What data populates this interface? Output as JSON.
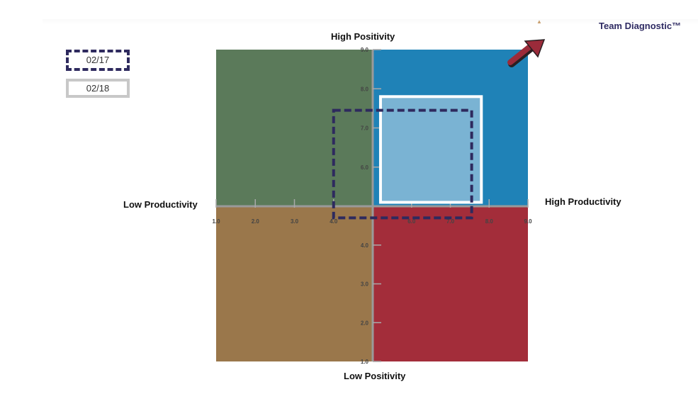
{
  "header": {
    "brand": "Team Diagnostic™",
    "brand_mark": "▲"
  },
  "legend": [
    {
      "label": "02/17",
      "style": "dashed",
      "color": "#2e2a5e"
    },
    {
      "label": "02/18",
      "style": "solid",
      "color": "#c8c8c8"
    }
  ],
  "chart_data": {
    "type": "quadrant",
    "xlabel_left": "Low Productivity",
    "xlabel_right": "High Productivity",
    "ylabel_top": "High Positivity",
    "ylabel_bottom": "Low Positivity",
    "xlim": [
      1.0,
      9.0
    ],
    "ylim": [
      1.0,
      9.0
    ],
    "midpoint": [
      5.0,
      5.0
    ],
    "x_ticks": [
      "1.0",
      "2.0",
      "3.0",
      "4.0",
      "6.0",
      "7.0",
      "8.0",
      "9.0"
    ],
    "y_ticks": [
      "1.0",
      "2.0",
      "3.0",
      "4.0",
      "6.0",
      "7.0",
      "8.0",
      "9.0"
    ],
    "quadrants": [
      {
        "name": "low-productivity-high-positivity",
        "color": "#5b7a5a"
      },
      {
        "name": "high-productivity-high-positivity",
        "color": "#1f82b7"
      },
      {
        "name": "low-productivity-low-positivity",
        "color": "#9a774b"
      },
      {
        "name": "high-productivity-low-positivity",
        "color": "#a32d3a"
      }
    ],
    "series": [
      {
        "name": "02/17",
        "x_range": [
          4.0,
          7.55
        ],
        "y_range": [
          4.7,
          7.45
        ],
        "style": "dashed",
        "color": "#2e2a5e"
      },
      {
        "name": "02/18",
        "x_range": [
          5.2,
          7.8
        ],
        "y_range": [
          5.1,
          7.8
        ],
        "style": "solid",
        "color": "#ffffff",
        "fill": "#7ab3d3"
      }
    ],
    "arrow_color": "#9b2b3a"
  }
}
